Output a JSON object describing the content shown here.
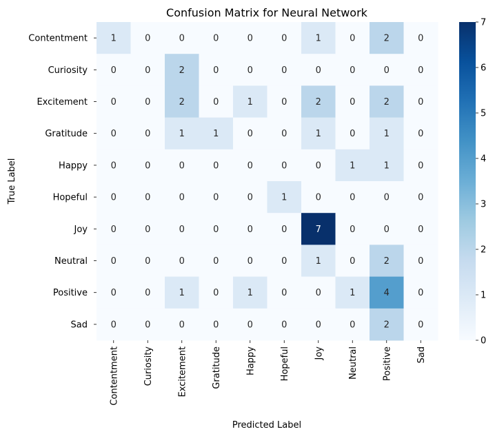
{
  "chart_data": {
    "type": "heatmap",
    "title": "Confusion Matrix for Neural Network",
    "xlabel": "Predicted Label",
    "ylabel": "True Label",
    "x_categories": [
      "Contentment",
      "Curiosity",
      "Excitement",
      "Gratitude",
      "Happy",
      "Hopeful",
      "Joy",
      "Neutral",
      "Positive",
      "Sad"
    ],
    "y_categories": [
      "Contentment",
      "Curiosity",
      "Excitement",
      "Gratitude",
      "Happy",
      "Hopeful",
      "Joy",
      "Neutral",
      "Positive",
      "Sad"
    ],
    "values": [
      [
        1,
        0,
        0,
        0,
        0,
        0,
        1,
        0,
        2,
        0
      ],
      [
        0,
        0,
        2,
        0,
        0,
        0,
        0,
        0,
        0,
        0
      ],
      [
        0,
        0,
        2,
        0,
        1,
        0,
        2,
        0,
        2,
        0
      ],
      [
        0,
        0,
        1,
        1,
        0,
        0,
        1,
        0,
        1,
        0
      ],
      [
        0,
        0,
        0,
        0,
        0,
        0,
        0,
        1,
        1,
        0
      ],
      [
        0,
        0,
        0,
        0,
        0,
        1,
        0,
        0,
        0,
        0
      ],
      [
        0,
        0,
        0,
        0,
        0,
        0,
        7,
        0,
        0,
        0
      ],
      [
        0,
        0,
        0,
        0,
        0,
        0,
        1,
        0,
        2,
        0
      ],
      [
        0,
        0,
        1,
        0,
        1,
        0,
        0,
        1,
        4,
        0
      ],
      [
        0,
        0,
        0,
        0,
        0,
        0,
        0,
        0,
        2,
        0
      ]
    ],
    "colormap": "Blues",
    "vmin": 0,
    "vmax": 7,
    "colorbar_ticks": [
      0,
      1,
      2,
      3,
      4,
      5,
      6,
      7
    ],
    "annotated": true,
    "grid": false
  }
}
